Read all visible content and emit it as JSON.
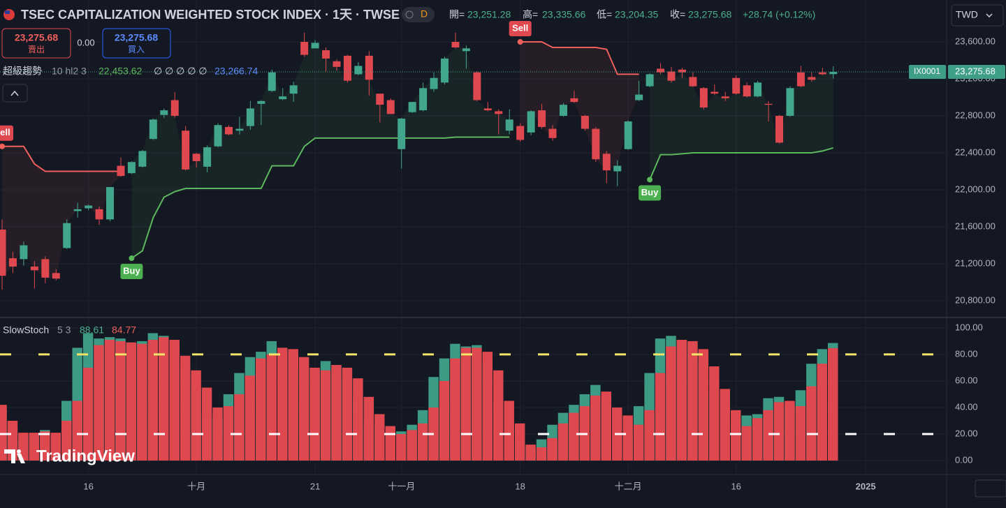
{
  "toolbar": {
    "title": "TSEC CAPITALIZATION WEIGHTED STOCK INDEX · 1天 · TWSE",
    "interval_button": "D",
    "ohlc": [
      {
        "label": "開=",
        "value": "23,251.28"
      },
      {
        "label": "高=",
        "value": "23,335.66"
      },
      {
        "label": "低=",
        "value": "23,204.35"
      },
      {
        "label": "收=",
        "value": "23,275.68"
      }
    ],
    "change": "+28.74 (+0.12%)",
    "sell": {
      "price": "23,275.68",
      "label": "賣出"
    },
    "spread": "0.00",
    "buy": {
      "price": "23,275.68",
      "label": "買入"
    },
    "currency": "TWD",
    "logo": "TradingView"
  },
  "chart_data": [
    {
      "type": "candlestick",
      "up_color": "#42a68c",
      "down_color": "#e0484f",
      "xlim": [
        -0.194,
        87.5
      ],
      "xticks": [
        {
          "value": 8,
          "label": "16"
        },
        {
          "value": 18,
          "label": "十月"
        },
        {
          "value": 29,
          "label": "21"
        },
        {
          "value": 37,
          "label": "十一月"
        },
        {
          "value": 48,
          "label": "18"
        },
        {
          "value": 58,
          "label": "十二月"
        },
        {
          "value": 68,
          "label": "16"
        },
        {
          "value": 80,
          "label": "2025"
        }
      ],
      "ylim": [
        20634,
        24053
      ],
      "yticks": [
        {
          "value": 20800,
          "label": "20,800.00"
        },
        {
          "value": 21200,
          "label": "21,200.00"
        },
        {
          "value": 21600,
          "label": "21,600.00"
        },
        {
          "value": 22000,
          "label": "22,000.00"
        },
        {
          "value": 22400,
          "label": "22,400.00"
        },
        {
          "value": 22800,
          "label": "22,800.00"
        },
        {
          "value": 23200,
          "label": "23,200.00"
        },
        {
          "value": 23600,
          "label": "23,600.00"
        }
      ],
      "grid": true,
      "symbol_tag": "IX0001",
      "last_price_label": "23,275.68",
      "open": [
        21570,
        21260,
        21250,
        21170,
        21250,
        21100,
        21370,
        21770,
        21800,
        21790,
        21680,
        22260,
        22180,
        22250,
        22550,
        22810,
        22970,
        22640,
        22390,
        22250,
        22470,
        22680,
        22640,
        22690,
        22930,
        23070,
        22980,
        23040,
        23600,
        23530,
        23510,
        23390,
        23450,
        23250,
        23450,
        23040,
        22970,
        22440,
        22840,
        22860,
        23090,
        23160,
        23600,
        23500,
        23270,
        22880,
        22850,
        22640,
        22690,
        22620,
        22860,
        22660,
        22800,
        22990,
        22800,
        22660,
        22390,
        22200,
        22440,
        22970,
        23120,
        23310,
        23280,
        23300,
        23220,
        23100,
        23060,
        23010,
        23210,
        23130,
        23010,
        22930,
        22800,
        22800,
        23270,
        23220,
        23270,
        23251.28
      ],
      "high": [
        21680,
        21330,
        21440,
        21230,
        21280,
        21140,
        21680,
        21860,
        21840,
        21820,
        22030,
        22350,
        22310,
        22430,
        22770,
        22880,
        23060,
        22690,
        22400,
        22480,
        22720,
        22700,
        22790,
        22960,
        22970,
        23300,
        23100,
        23170,
        23700,
        23620,
        23540,
        23410,
        23460,
        23380,
        23500,
        23040,
        22990,
        22780,
        22950,
        23160,
        23270,
        23440,
        23700,
        23560,
        23280,
        22950,
        22870,
        22870,
        22720,
        22860,
        22930,
        22700,
        22940,
        23070,
        22810,
        22680,
        22420,
        22320,
        22750,
        23180,
        23260,
        23370,
        23330,
        23320,
        23270,
        23110,
        23140,
        23060,
        23240,
        23160,
        23180,
        22960,
        22810,
        23120,
        23340,
        23270,
        23320,
        23335.66
      ],
      "low": [
        20920,
        21100,
        21180,
        20930,
        20990,
        21020,
        21360,
        21700,
        21780,
        21620,
        21660,
        22140,
        22170,
        22240,
        22540,
        22780,
        22780,
        22210,
        22240,
        22190,
        22460,
        22590,
        22600,
        22650,
        22700,
        23060,
        22970,
        22950,
        23440,
        23530,
        23280,
        23290,
        23160,
        23240,
        23020,
        22730,
        22820,
        22230,
        22830,
        22850,
        23060,
        23140,
        23530,
        23310,
        22960,
        22850,
        22600,
        22600,
        22520,
        22590,
        22660,
        22530,
        22790,
        22940,
        22640,
        22300,
        22070,
        22040,
        22430,
        22960,
        23110,
        23250,
        23160,
        23210,
        23110,
        22870,
        23030,
        22960,
        23030,
        23000,
        23000,
        22740,
        22500,
        22790,
        23110,
        23170,
        23240,
        23204.35
      ],
      "close": [
        21070,
        21170,
        21400,
        21130,
        21050,
        21040,
        21640,
        21790,
        21830,
        21680,
        22030,
        22150,
        22300,
        22420,
        22760,
        22860,
        22800,
        22220,
        22310,
        22460,
        22700,
        22600,
        22660,
        22880,
        22960,
        23270,
        23010,
        23130,
        23460,
        23590,
        23420,
        23330,
        23180,
        23340,
        23190,
        22920,
        22820,
        22770,
        22950,
        23100,
        23210,
        23420,
        23540,
        23530,
        22970,
        22860,
        22820,
        22760,
        22540,
        22850,
        22680,
        22560,
        22920,
        22950,
        22660,
        22330,
        22210,
        22260,
        22740,
        23030,
        23250,
        23270,
        23180,
        23270,
        23120,
        22890,
        23040,
        22990,
        23040,
        23010,
        23160,
        22920,
        22510,
        23100,
        23120,
        23190,
        23250,
        23275.68
      ],
      "supertrend": {
        "name": "超級趨勢",
        "params": "10 hl2 3",
        "legend_values": [
          "22,453.62",
          "∅ ∅ ∅ ∅ ∅",
          "23,266.74"
        ],
        "up_color": "#5cb85c",
        "down_color": "#f0605a",
        "up": [
          null,
          null,
          null,
          null,
          null,
          null,
          null,
          null,
          null,
          null,
          null,
          null,
          21260,
          21340,
          21700,
          21920,
          21980,
          22015,
          22015,
          22015,
          22015,
          22015,
          22015,
          22015,
          22015,
          22260,
          22260,
          22260,
          22470,
          22560,
          22560,
          22560,
          22560,
          22560,
          22560,
          22560,
          22560,
          22560,
          22560,
          22560,
          22560,
          22560,
          22570,
          22570,
          22570,
          22570,
          22570,
          22570,
          null,
          null,
          null,
          null,
          null,
          null,
          null,
          null,
          null,
          null,
          null,
          null,
          22110,
          22380,
          22380,
          22390,
          22400,
          22400,
          22400,
          22400,
          22400,
          22400,
          22400,
          22400,
          22400,
          22400,
          22400,
          22400,
          22420,
          22453.62
        ],
        "down": [
          22470,
          22470,
          22470,
          22280,
          22200,
          22200,
          22200,
          22200,
          22200,
          22200,
          22200,
          22200,
          null,
          null,
          null,
          null,
          null,
          null,
          null,
          null,
          null,
          null,
          null,
          null,
          null,
          null,
          null,
          null,
          null,
          null,
          null,
          null,
          null,
          null,
          null,
          null,
          null,
          null,
          null,
          null,
          null,
          null,
          null,
          null,
          null,
          null,
          null,
          null,
          23600,
          23600,
          23600,
          23540,
          23540,
          23540,
          23540,
          23540,
          23520,
          23250,
          23250,
          23250,
          null,
          null,
          null,
          null,
          null,
          null,
          null,
          null,
          null,
          null,
          null,
          null,
          null,
          null,
          null,
          null,
          null,
          null
        ],
        "signals": [
          {
            "text": "Sell",
            "index": 0,
            "side": "down"
          },
          {
            "text": "Buy",
            "index": 12,
            "side": "up"
          },
          {
            "text": "Sell",
            "index": 48,
            "side": "down"
          },
          {
            "text": "Buy",
            "index": 60,
            "side": "up"
          }
        ]
      }
    },
    {
      "type": "overlap-bar",
      "name": "SlowStoch",
      "params": "5 3",
      "ylim": [
        -10.5,
        107.3
      ],
      "yticks": [
        {
          "value": 0,
          "label": "0.00"
        },
        {
          "value": 20,
          "label": "20.00"
        },
        {
          "value": 40,
          "label": "40.00"
        },
        {
          "value": 60,
          "label": "60.00"
        },
        {
          "value": 80,
          "label": "80.00"
        },
        {
          "value": 100,
          "label": "100.00"
        }
      ],
      "levels": [
        {
          "value": 80,
          "color": "#f5e46a"
        },
        {
          "value": 20,
          "color": "#ffffff"
        }
      ],
      "series": [
        {
          "color": "#3d9a84",
          "legend_value": "88.61",
          "values": [
            38,
            25,
            18,
            20,
            23,
            20,
            45,
            85,
            96,
            92,
            93,
            92,
            89,
            90,
            96,
            94,
            88,
            72,
            55,
            35,
            32,
            50,
            66,
            78,
            82,
            90,
            85,
            82,
            70,
            68,
            75,
            72,
            62,
            50,
            30,
            26,
            21,
            22,
            27,
            38,
            63,
            77,
            88,
            86,
            87,
            72,
            45,
            28,
            12,
            8,
            16,
            27,
            36,
            42,
            50,
            57,
            47,
            34,
            20,
            41,
            66,
            92,
            94,
            91,
            88,
            75,
            50,
            37,
            26,
            34,
            35,
            47,
            48,
            43,
            53,
            73,
            84,
            88.61
          ]
        },
        {
          "color": "#e0484f",
          "legend_value": "84.77",
          "values": [
            42,
            30,
            21,
            21,
            22,
            21,
            30,
            45,
            70,
            87,
            91,
            90,
            89,
            88,
            91,
            93,
            91,
            79,
            68,
            55,
            40,
            41,
            50,
            64,
            77,
            80,
            85,
            84,
            78,
            70,
            68,
            72,
            70,
            62,
            48,
            35,
            26,
            20,
            23,
            28,
            40,
            60,
            77,
            85,
            85,
            82,
            68,
            45,
            28,
            12,
            10,
            17,
            28,
            36,
            41,
            49,
            52,
            40,
            34,
            27,
            38,
            66,
            86,
            91,
            90,
            84,
            71,
            54,
            38,
            26,
            32,
            38,
            44,
            45,
            41,
            56,
            73,
            84.77
          ]
        }
      ]
    }
  ]
}
